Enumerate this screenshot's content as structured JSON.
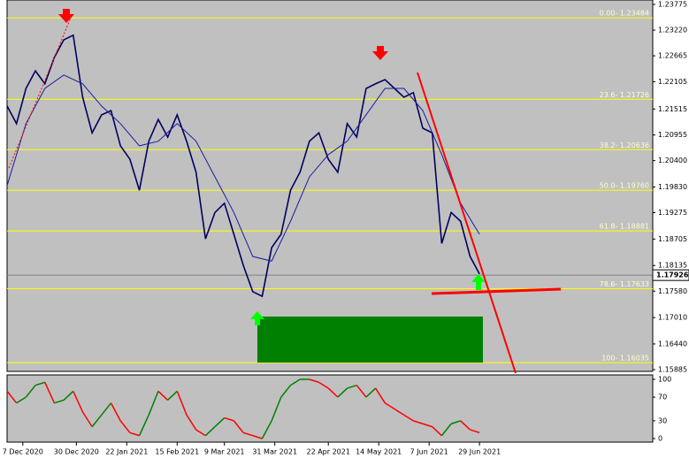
{
  "chart_data": {
    "type": "line",
    "xlim": [
      0,
      205
    ],
    "ylim": [
      1.15885,
      1.23775
    ],
    "yticks": [
      {
        "value": 1.23775,
        "label": "1.23775"
      },
      {
        "value": 1.2322,
        "label": "1.23220"
      },
      {
        "value": 1.22665,
        "label": "1.22665"
      },
      {
        "value": 1.22105,
        "label": "1.22105"
      },
      {
        "value": 1.21515,
        "label": "1.21515"
      },
      {
        "value": 1.20955,
        "label": "1.20955"
      },
      {
        "value": 1.204,
        "label": "1.20400"
      },
      {
        "value": 1.1983,
        "label": "1.19830"
      },
      {
        "value": 1.19275,
        "label": "1.19275"
      },
      {
        "value": 1.18705,
        "label": "1.18705"
      },
      {
        "value": 1.18135,
        "label": "1.18135"
      },
      {
        "value": 1.1758,
        "label": "1.17580"
      },
      {
        "value": 1.1701,
        "label": "1.17010"
      },
      {
        "value": 1.1644,
        "label": "1.16440"
      },
      {
        "value": 1.15885,
        "label": "1.15885"
      }
    ],
    "xticks": [
      {
        "value": 5,
        "label": "7 Dec 2020"
      },
      {
        "value": 22,
        "label": "30 Dec 2020"
      },
      {
        "value": 38,
        "label": "22 Jan 2021"
      },
      {
        "value": 54,
        "label": "15 Feb 2021"
      },
      {
        "value": 69,
        "label": "9 Mar 2021"
      },
      {
        "value": 85,
        "label": "31 Mar 2021"
      },
      {
        "value": 102,
        "label": "22 Apr 2021"
      },
      {
        "value": 118,
        "label": "14 May 2021"
      },
      {
        "value": 134,
        "label": "7 Jun 2021"
      },
      {
        "value": 150,
        "label": "29 Jun 2021"
      }
    ],
    "current_price": 1.17926,
    "fib_levels": [
      {
        "value": 1.23484,
        "label": "0.00- 1.23484"
      },
      {
        "value": 1.21726,
        "label": "23.6- 1.21726"
      },
      {
        "value": 1.20636,
        "label": "38.2- 1.20636"
      },
      {
        "value": 1.1976,
        "label": "50.0- 1.19760"
      },
      {
        "value": 1.18881,
        "label": "61.8- 1.18881"
      },
      {
        "value": 1.17633,
        "label": "78.6- 1.17633"
      },
      {
        "value": 1.16035,
        "label": "100- 1.16035"
      }
    ],
    "series": [
      {
        "color": "#000060",
        "x": [
          0,
          3,
          6,
          9,
          12,
          15,
          18,
          21,
          24,
          27,
          30,
          33,
          36,
          39,
          42,
          45,
          48,
          51,
          54,
          57,
          60,
          63,
          66,
          69,
          72,
          75,
          78,
          81,
          84,
          87,
          90,
          93,
          96,
          99,
          102,
          105,
          108,
          111,
          114,
          117,
          120,
          123,
          126,
          129,
          132,
          135,
          138,
          141,
          144,
          147,
          150
        ],
        "values": [
          1.2158,
          1.212,
          1.2196,
          1.2234,
          1.2206,
          1.2263,
          1.2301,
          1.2311,
          1.2177,
          1.21,
          1.2139,
          1.2148,
          1.2072,
          1.2043,
          1.1976,
          1.2082,
          1.2129,
          1.2091,
          1.2139,
          1.2082,
          1.2015,
          1.1871,
          1.1928,
          1.1948,
          1.1881,
          1.1814,
          1.1757,
          1.1747,
          1.1852,
          1.1881,
          1.1976,
          1.2015,
          1.2082,
          1.21,
          1.2043,
          1.2015,
          1.212,
          1.2091,
          1.2196,
          1.2206,
          1.2215,
          1.2196,
          1.2177,
          1.2187,
          1.211,
          1.21,
          1.1861,
          1.1928,
          1.1909,
          1.1833,
          1.1795
        ]
      },
      {
        "color": "#1a1aa0",
        "x": [
          0,
          6,
          12,
          18,
          24,
          30,
          36,
          42,
          48,
          54,
          60,
          66,
          72,
          78,
          84,
          90,
          96,
          102,
          108,
          114,
          120,
          126,
          132,
          138,
          144,
          150
        ],
        "values": [
          1.1986,
          1.212,
          1.2196,
          1.2225,
          1.2206,
          1.2158,
          1.212,
          1.2072,
          1.2082,
          1.212,
          1.2082,
          1.2005,
          1.1928,
          1.1833,
          1.1823,
          1.1909,
          1.2005,
          1.2053,
          1.2082,
          1.2139,
          1.2196,
          1.2196,
          1.2148,
          1.2053,
          1.1948,
          1.1881
        ]
      }
    ],
    "oscillator": {
      "ylim": [
        0,
        100
      ],
      "yticks": [
        100,
        70,
        30,
        0
      ],
      "x": [
        0,
        3,
        6,
        9,
        12,
        15,
        18,
        21,
        24,
        27,
        30,
        33,
        36,
        39,
        42,
        45,
        48,
        51,
        54,
        57,
        60,
        63,
        66,
        69,
        72,
        75,
        78,
        81,
        84,
        87,
        90,
        93,
        96,
        99,
        102,
        105,
        108,
        111,
        114,
        117,
        120,
        123,
        126,
        129,
        132,
        135,
        138,
        141,
        144,
        147,
        150
      ],
      "values": [
        80,
        60,
        70,
        90,
        95,
        60,
        65,
        80,
        45,
        20,
        40,
        60,
        30,
        10,
        5,
        40,
        80,
        65,
        80,
        40,
        15,
        5,
        20,
        35,
        30,
        10,
        5,
        0,
        30,
        70,
        90,
        100,
        100,
        95,
        85,
        70,
        85,
        90,
        70,
        85,
        60,
        50,
        40,
        30,
        25,
        20,
        5,
        25,
        30,
        15,
        10
      ]
    }
  }
}
